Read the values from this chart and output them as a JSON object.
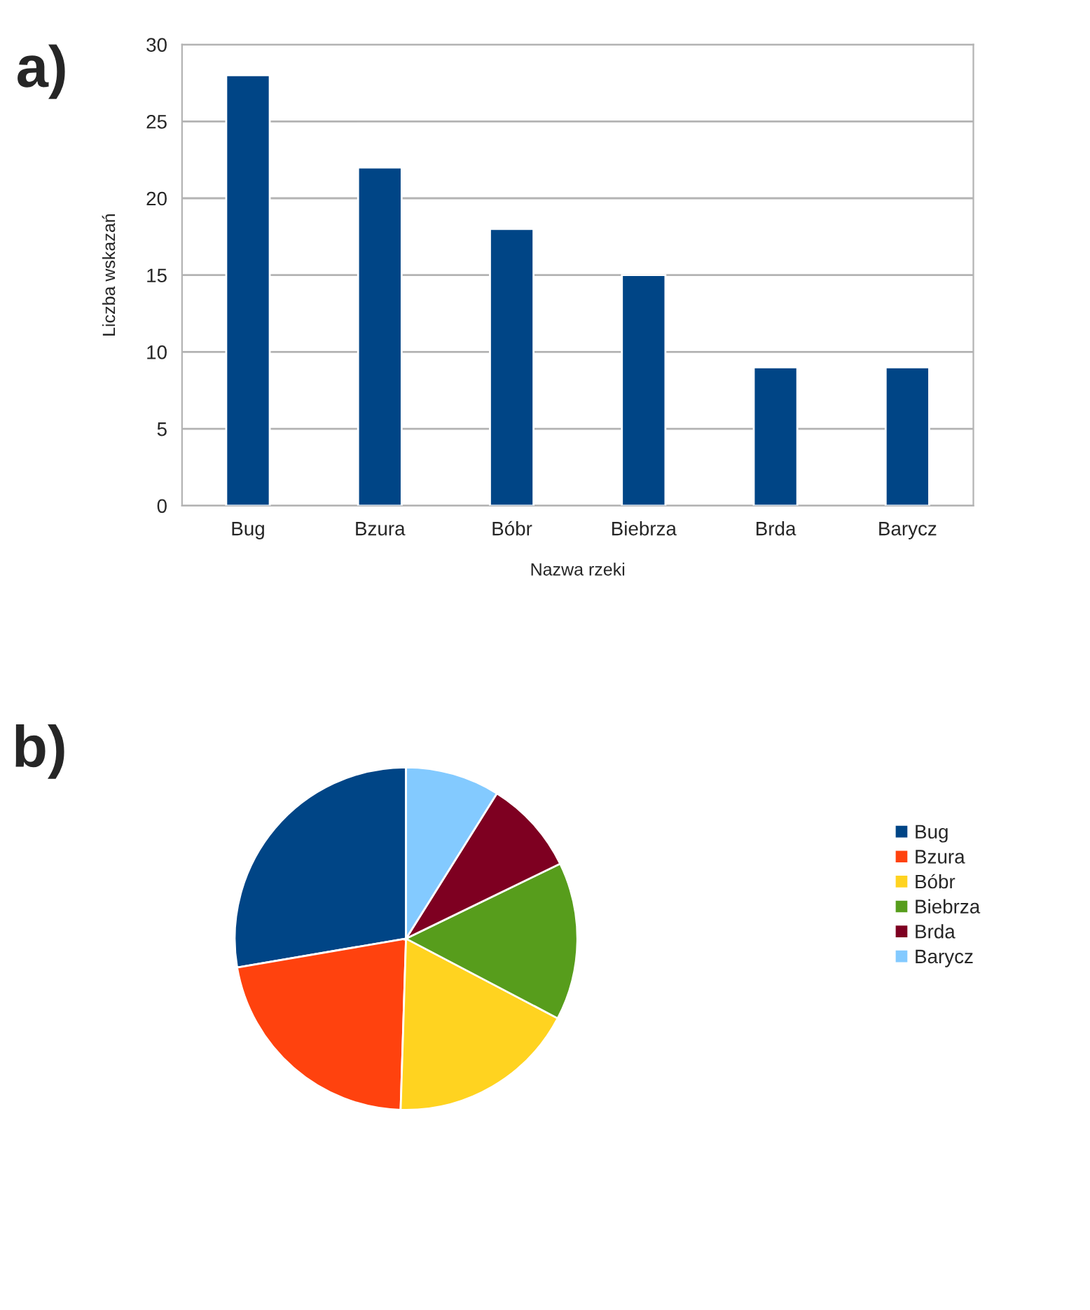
{
  "chart_data": [
    {
      "type": "bar",
      "title": "a)",
      "xlabel": "Nazwa rzeki",
      "ylabel": "Liczba wskazań",
      "categories": [
        "Bug",
        "Bzura",
        "Bóbr",
        "Biebrza",
        "Brda",
        "Barycz"
      ],
      "values": [
        28,
        22,
        18,
        15,
        9,
        9
      ],
      "color": "#004586",
      "ylim": [
        0,
        30
      ],
      "yticks": [
        0,
        5,
        10,
        15,
        20,
        25,
        30
      ],
      "grid": "y",
      "legend": false
    },
    {
      "type": "pie",
      "title": "b)",
      "categories": [
        "Bug",
        "Bzura",
        "Bóbr",
        "Biebrza",
        "Brda",
        "Barycz"
      ],
      "values": [
        27.7,
        21.8,
        17.8,
        14.9,
        8.9,
        8.9
      ],
      "colors": [
        "#004586",
        "#ff420e",
        "#ffd320",
        "#579d1c",
        "#7e0021",
        "#83caff"
      ],
      "legend": "right"
    }
  ]
}
